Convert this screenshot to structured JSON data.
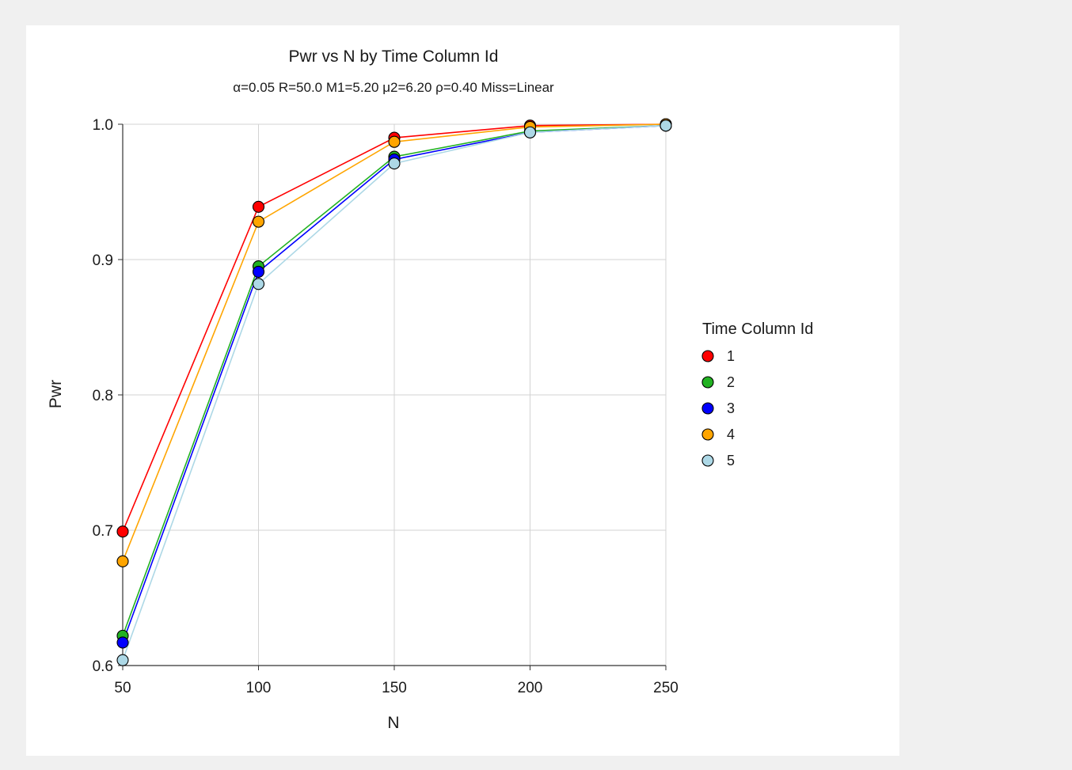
{
  "chart_data": {
    "type": "line",
    "title": "Pwr vs N by Time Column Id",
    "subtitle": "α=0.05 R=50.0 M1=5.20 μ2=6.20 ρ=0.40 Miss=Linear",
    "xlabel": "N",
    "ylabel": "Pwr",
    "x": [
      50,
      100,
      150,
      200,
      250
    ],
    "xlim": [
      50,
      250
    ],
    "ylim": [
      0.6,
      1.0
    ],
    "xticks": [
      "50",
      "100",
      "150",
      "200",
      "250"
    ],
    "yticks": [
      "0.6",
      "0.7",
      "0.8",
      "0.9",
      "1.0"
    ],
    "grid": true,
    "legend_position": "right",
    "legend_title": "Time Column Id",
    "series": [
      {
        "name": "1",
        "color": "#ff0000",
        "values": [
          0.699,
          0.939,
          0.99,
          0.999,
          1.0
        ]
      },
      {
        "name": "2",
        "color": "#22b222",
        "values": [
          0.622,
          0.895,
          0.976,
          0.995,
          0.999
        ]
      },
      {
        "name": "3",
        "color": "#0000ff",
        "values": [
          0.617,
          0.891,
          0.974,
          0.994,
          0.999
        ]
      },
      {
        "name": "4",
        "color": "#ffa500",
        "values": [
          0.677,
          0.928,
          0.987,
          0.998,
          1.0
        ]
      },
      {
        "name": "5",
        "color": "#add8e6",
        "values": [
          0.604,
          0.882,
          0.971,
          0.994,
          0.999
        ]
      }
    ]
  }
}
